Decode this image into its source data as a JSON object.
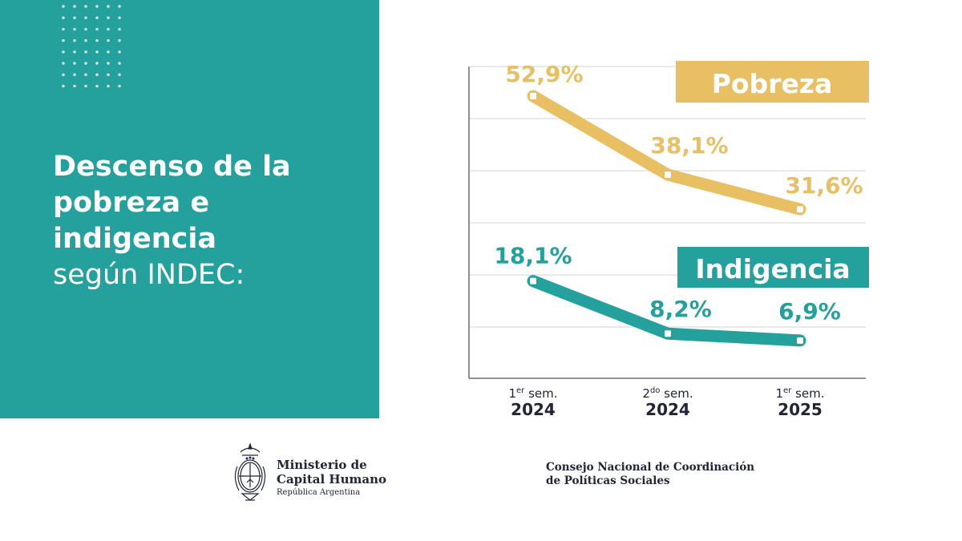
{
  "headline": {
    "line1": "Descenso de la",
    "line2": "pobreza e",
    "line3": "indigencia",
    "line4": "según INDEC:"
  },
  "colors": {
    "teal": "#24a09d",
    "gold": "#e9bf63",
    "grid": "#d4d4d4",
    "axis": "#555555",
    "dark_text": "#22243a"
  },
  "chart_data": {
    "type": "line",
    "categories": [
      {
        "sup_prefix": "1",
        "sup": "er",
        "suffix": " sem.",
        "year": "2024"
      },
      {
        "sup_prefix": "2",
        "sup": "do",
        "suffix": " sem.",
        "year": "2024"
      },
      {
        "sup_prefix": "1",
        "sup": "er",
        "suffix": " sem.",
        "year": "2025"
      }
    ],
    "series": [
      {
        "name": "Pobreza",
        "values": [
          52.9,
          38.1,
          31.6
        ],
        "labels": [
          "52,9%",
          "38,1%",
          "31,6%"
        ],
        "color": "#e9bf63"
      },
      {
        "name": "Indigencia",
        "values": [
          18.1,
          8.2,
          6.9
        ],
        "labels": [
          "18,1%",
          "8,2%",
          "6,9%"
        ],
        "color": "#24a09d"
      }
    ],
    "grid": true,
    "legend": "labels boxed near each series, right side"
  },
  "footer": {
    "ministry_line1": "Ministerio de",
    "ministry_line2": "Capital Humano",
    "ministry_sub": "República Argentina",
    "council_line1": "Consejo Nacional de Coordinación",
    "council_line2": "de Políticas Sociales",
    "seal_icon": "argentina-coat-of-arms"
  }
}
